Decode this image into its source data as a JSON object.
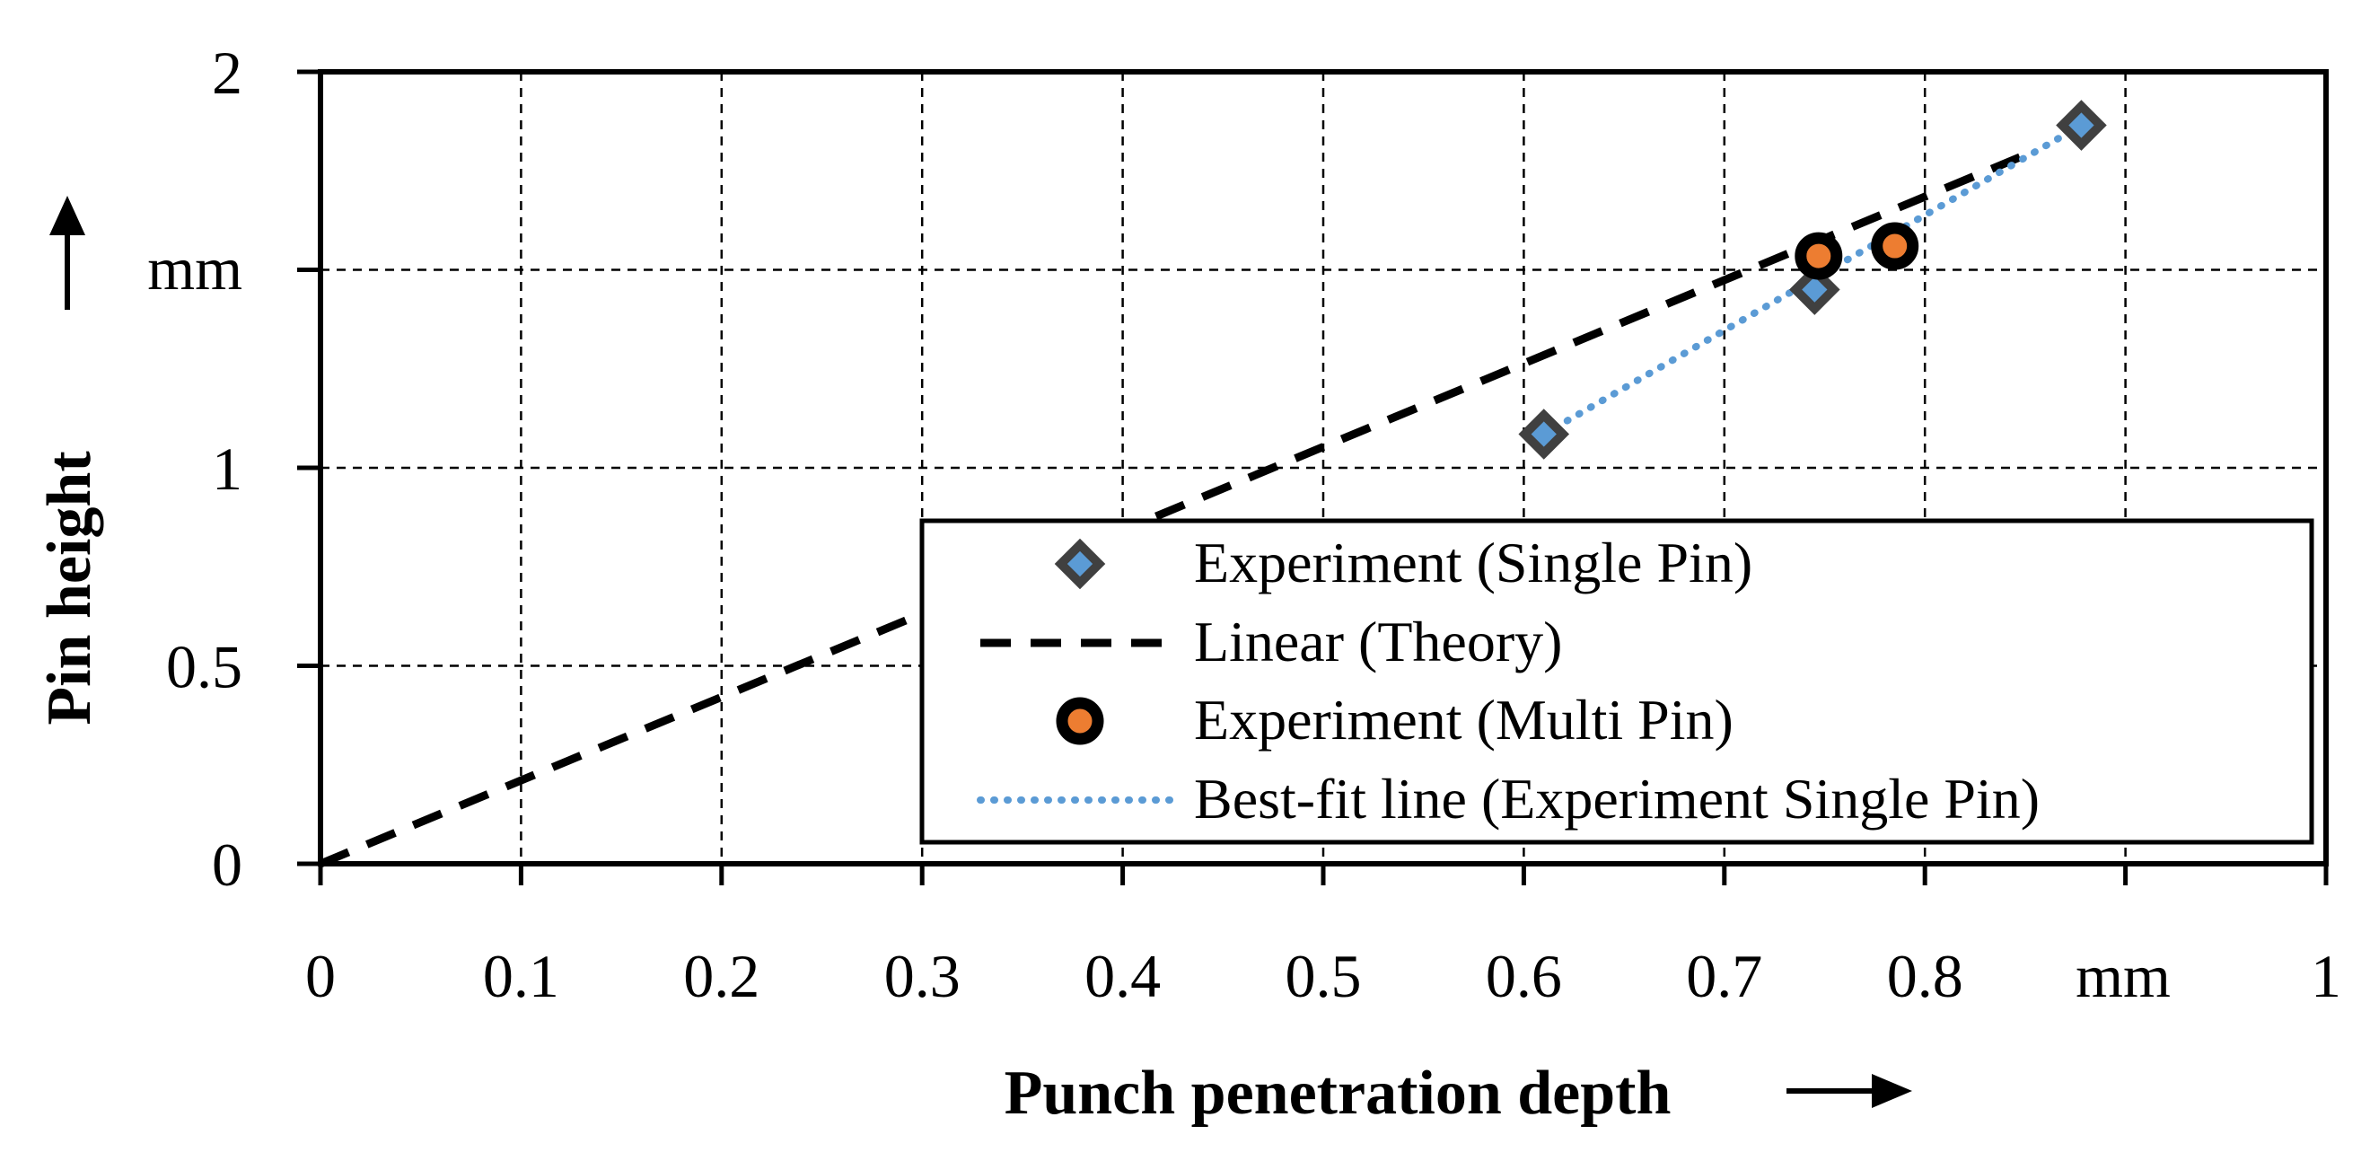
{
  "chart_data": {
    "type": "scatter",
    "title": "",
    "xlabel": "Punch penetration depth",
    "ylabel": "Pin height",
    "x_unit": "mm",
    "y_unit": "mm",
    "xlim": [
      0,
      1
    ],
    "ylim": [
      0,
      2
    ],
    "grid": true,
    "legend_position": "bottom-right",
    "x_ticks": [
      {
        "value": 0,
        "label": "0"
      },
      {
        "value": 0.1,
        "label": "0.1"
      },
      {
        "value": 0.2,
        "label": "0.2"
      },
      {
        "value": 0.3,
        "label": "0.3"
      },
      {
        "value": 0.4,
        "label": "0.4"
      },
      {
        "value": 0.5,
        "label": "0.5"
      },
      {
        "value": 0.6,
        "label": "0.6"
      },
      {
        "value": 0.7,
        "label": "0.7"
      },
      {
        "value": 0.8,
        "label": "0.8"
      },
      {
        "value": 1,
        "label": "1"
      }
    ],
    "y_ticks": [
      {
        "value": 0,
        "label": "0"
      },
      {
        "value": 0.5,
        "label": "0.5"
      },
      {
        "value": 1,
        "label": "1"
      },
      {
        "value": 2,
        "label": "2"
      }
    ],
    "series": [
      {
        "name": "Experiment (Single Pin)",
        "kind": "marker",
        "marker": "diamond",
        "color": "#5b9bd5",
        "edge_color": "#404040",
        "x": [
          0.61,
          0.745,
          0.878
        ],
        "y": [
          1.085,
          1.45,
          1.865
        ]
      },
      {
        "name": "Linear (Theory)",
        "kind": "line",
        "style": "dashed",
        "color": "#000000",
        "x": [
          0,
          0.85
        ],
        "y": [
          0,
          1.79
        ]
      },
      {
        "name": "Experiment (Multi Pin)",
        "kind": "marker",
        "marker": "circle",
        "color": "#ed7d31",
        "edge_color": "#000000",
        "x": [
          0.747,
          0.785
        ],
        "y": [
          1.535,
          1.56
        ]
      },
      {
        "name": "Best-fit line (Experiment Single Pin)",
        "kind": "line",
        "style": "dotted",
        "color": "#5b9bd5",
        "x": [
          0.61,
          0.878
        ],
        "y": [
          1.085,
          1.865
        ]
      }
    ]
  }
}
